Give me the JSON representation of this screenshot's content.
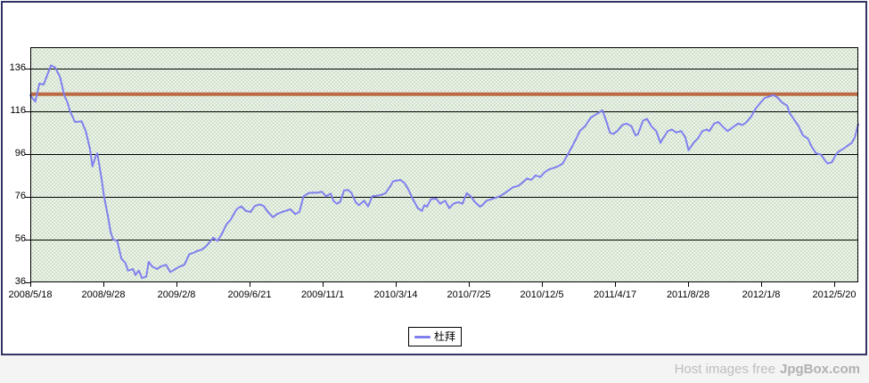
{
  "legend": {
    "label": "杜拜"
  },
  "watermark": {
    "prefix": "Host images free",
    "brand": "JpgBox.com"
  },
  "colors": {
    "series": "#8080ee",
    "reference_line": "#bc6a44",
    "grid": "#000000",
    "frame_border": "#333366",
    "plot_bg": "#d9e6d4",
    "footer_bg": "#f4f4f4",
    "watermark_text": "#bdbdbd"
  },
  "chart_data": {
    "type": "line",
    "title": "",
    "xlabel": "",
    "ylabel": "",
    "grid": true,
    "legend_position": "bottom-center",
    "ylim": [
      36,
      146
    ],
    "y_ticks": [
      136,
      116,
      96,
      76,
      56,
      36
    ],
    "x_tick_labels": [
      "2008/5/18",
      "2008/9/28",
      "2009/2/8",
      "2009/6/21",
      "2009/11/1",
      "2010/3/14",
      "2010/7/25",
      "2010/12/5",
      "2011/4/17",
      "2011/8/28",
      "2012/1/8",
      "2012/5/20"
    ],
    "reference_line": 124,
    "series": [
      {
        "name": "杜拜",
        "points": [
          [
            0.0,
            123.5
          ],
          [
            0.006,
            120.5
          ],
          [
            0.011,
            129.0
          ],
          [
            0.016,
            128.5
          ],
          [
            0.025,
            137.5
          ],
          [
            0.03,
            136.5
          ],
          [
            0.036,
            132.0
          ],
          [
            0.041,
            123.5
          ],
          [
            0.045,
            120.0
          ],
          [
            0.048,
            116.0
          ],
          [
            0.054,
            111.0
          ],
          [
            0.062,
            111.3
          ],
          [
            0.067,
            106.8
          ],
          [
            0.072,
            98.5
          ],
          [
            0.075,
            90.2
          ],
          [
            0.079,
            95.0
          ],
          [
            0.081,
            96.4
          ],
          [
            0.086,
            84.6
          ],
          [
            0.089,
            76.3
          ],
          [
            0.094,
            66.5
          ],
          [
            0.097,
            59.6
          ],
          [
            0.1,
            56.1
          ],
          [
            0.105,
            55.4
          ],
          [
            0.11,
            47.1
          ],
          [
            0.115,
            45.0
          ],
          [
            0.118,
            41.5
          ],
          [
            0.124,
            42.2
          ],
          [
            0.127,
            39.4
          ],
          [
            0.131,
            41.5
          ],
          [
            0.135,
            38.0
          ],
          [
            0.14,
            38.7
          ],
          [
            0.143,
            45.6
          ],
          [
            0.147,
            43.5
          ],
          [
            0.153,
            42.2
          ],
          [
            0.158,
            43.5
          ],
          [
            0.164,
            44.2
          ],
          [
            0.169,
            40.8
          ],
          [
            0.172,
            41.5
          ],
          [
            0.175,
            42.2
          ],
          [
            0.181,
            43.5
          ],
          [
            0.186,
            44.2
          ],
          [
            0.192,
            49.2
          ],
          [
            0.197,
            49.8
          ],
          [
            0.201,
            50.6
          ],
          [
            0.207,
            51.3
          ],
          [
            0.212,
            52.7
          ],
          [
            0.215,
            54.1
          ],
          [
            0.221,
            56.9
          ],
          [
            0.226,
            55.4
          ],
          [
            0.231,
            58.4
          ],
          [
            0.237,
            63.2
          ],
          [
            0.242,
            65.3
          ],
          [
            0.248,
            69.5
          ],
          [
            0.251,
            70.8
          ],
          [
            0.255,
            71.5
          ],
          [
            0.26,
            69.5
          ],
          [
            0.266,
            68.9
          ],
          [
            0.271,
            71.7
          ],
          [
            0.277,
            72.4
          ],
          [
            0.282,
            71.7
          ],
          [
            0.287,
            68.9
          ],
          [
            0.293,
            66.5
          ],
          [
            0.298,
            67.9
          ],
          [
            0.304,
            68.9
          ],
          [
            0.309,
            69.5
          ],
          [
            0.314,
            70.2
          ],
          [
            0.32,
            67.9
          ],
          [
            0.325,
            68.9
          ],
          [
            0.33,
            76.3
          ],
          [
            0.336,
            77.7
          ],
          [
            0.341,
            78.0
          ],
          [
            0.347,
            77.9
          ],
          [
            0.352,
            78.4
          ],
          [
            0.357,
            76.3
          ],
          [
            0.363,
            77.5
          ],
          [
            0.366,
            74.2
          ],
          [
            0.37,
            72.8
          ],
          [
            0.374,
            73.5
          ],
          [
            0.379,
            79.0
          ],
          [
            0.384,
            79.2
          ],
          [
            0.388,
            77.7
          ],
          [
            0.393,
            73.5
          ],
          [
            0.397,
            72.1
          ],
          [
            0.403,
            74.2
          ],
          [
            0.408,
            71.5
          ],
          [
            0.413,
            76.3
          ],
          [
            0.419,
            76.6
          ],
          [
            0.424,
            76.9
          ],
          [
            0.429,
            77.7
          ],
          [
            0.435,
            81.1
          ],
          [
            0.438,
            83.2
          ],
          [
            0.441,
            83.5
          ],
          [
            0.447,
            83.9
          ],
          [
            0.452,
            82.5
          ],
          [
            0.457,
            79.1
          ],
          [
            0.463,
            74.2
          ],
          [
            0.468,
            70.7
          ],
          [
            0.473,
            69.4
          ],
          [
            0.476,
            72.1
          ],
          [
            0.479,
            71.4
          ],
          [
            0.484,
            74.9
          ],
          [
            0.49,
            75.2
          ],
          [
            0.495,
            72.8
          ],
          [
            0.501,
            74.2
          ],
          [
            0.506,
            70.7
          ],
          [
            0.511,
            72.8
          ],
          [
            0.517,
            73.5
          ],
          [
            0.522,
            72.8
          ],
          [
            0.527,
            77.7
          ],
          [
            0.532,
            76.3
          ],
          [
            0.537,
            73.5
          ],
          [
            0.543,
            71.4
          ],
          [
            0.546,
            72.1
          ],
          [
            0.551,
            74.2
          ],
          [
            0.557,
            74.9
          ],
          [
            0.562,
            75.6
          ],
          [
            0.567,
            76.3
          ],
          [
            0.573,
            77.7
          ],
          [
            0.578,
            79.1
          ],
          [
            0.583,
            80.5
          ],
          [
            0.589,
            81.1
          ],
          [
            0.594,
            82.5
          ],
          [
            0.6,
            84.6
          ],
          [
            0.605,
            83.9
          ],
          [
            0.61,
            86.0
          ],
          [
            0.616,
            85.3
          ],
          [
            0.621,
            87.4
          ],
          [
            0.626,
            88.8
          ],
          [
            0.632,
            89.5
          ],
          [
            0.637,
            90.2
          ],
          [
            0.643,
            91.6
          ],
          [
            0.648,
            95.1
          ],
          [
            0.653,
            98.5
          ],
          [
            0.659,
            103.0
          ],
          [
            0.664,
            107.0
          ],
          [
            0.67,
            109.0
          ],
          [
            0.677,
            113.1
          ],
          [
            0.686,
            115.2
          ],
          [
            0.691,
            116.5
          ],
          [
            0.696,
            111.0
          ],
          [
            0.7,
            106.1
          ],
          [
            0.704,
            105.4
          ],
          [
            0.709,
            106.8
          ],
          [
            0.715,
            109.6
          ],
          [
            0.72,
            110.3
          ],
          [
            0.726,
            109.0
          ],
          [
            0.731,
            104.7
          ],
          [
            0.734,
            105.4
          ],
          [
            0.74,
            111.7
          ],
          [
            0.745,
            112.4
          ],
          [
            0.75,
            109.0
          ],
          [
            0.756,
            106.8
          ],
          [
            0.761,
            101.2
          ],
          [
            0.764,
            103.3
          ],
          [
            0.77,
            106.8
          ],
          [
            0.775,
            107.5
          ],
          [
            0.78,
            106.1
          ],
          [
            0.786,
            106.8
          ],
          [
            0.791,
            104.0
          ],
          [
            0.795,
            97.8
          ],
          [
            0.801,
            101.2
          ],
          [
            0.806,
            103.3
          ],
          [
            0.812,
            106.8
          ],
          [
            0.817,
            107.5
          ],
          [
            0.82,
            106.8
          ],
          [
            0.826,
            110.3
          ],
          [
            0.831,
            111.0
          ],
          [
            0.836,
            109.0
          ],
          [
            0.842,
            106.8
          ],
          [
            0.845,
            107.5
          ],
          [
            0.85,
            109.0
          ],
          [
            0.855,
            110.3
          ],
          [
            0.86,
            109.6
          ],
          [
            0.865,
            111.0
          ],
          [
            0.871,
            113.8
          ],
          [
            0.876,
            117.3
          ],
          [
            0.882,
            120.1
          ],
          [
            0.887,
            122.2
          ],
          [
            0.892,
            122.9
          ],
          [
            0.898,
            123.6
          ],
          [
            0.903,
            122.2
          ],
          [
            0.908,
            120.1
          ],
          [
            0.914,
            118.7
          ],
          [
            0.917,
            115.2
          ],
          [
            0.922,
            112.4
          ],
          [
            0.928,
            109.0
          ],
          [
            0.933,
            104.8
          ],
          [
            0.939,
            103.3
          ],
          [
            0.944,
            99.2
          ],
          [
            0.949,
            96.4
          ],
          [
            0.955,
            95.7
          ],
          [
            0.96,
            92.9
          ],
          [
            0.963,
            91.6
          ],
          [
            0.968,
            92.2
          ],
          [
            0.973,
            95.7
          ],
          [
            0.976,
            97.1
          ],
          [
            0.982,
            98.5
          ],
          [
            0.987,
            99.9
          ],
          [
            0.992,
            101.2
          ],
          [
            0.996,
            104.0
          ],
          [
            1.0,
            110.0
          ]
        ]
      }
    ]
  }
}
